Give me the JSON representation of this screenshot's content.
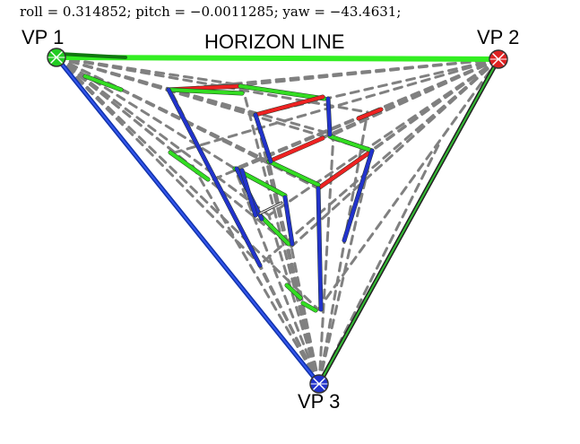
{
  "header": {
    "roll_label": "roll",
    "roll_value": "0.314852",
    "pitch_label": "pitch",
    "pitch_value": "−0.0011285",
    "yaw_label": "yaw",
    "yaw_value": "−43.4631",
    "text": "roll = 0.314852; pitch = −0.0011285; yaw = −43.4631;"
  },
  "horizon_label": "HORIZON LINE",
  "vanishing_points": [
    {
      "id": "vp1",
      "label": "VP 1",
      "color": "#22cc22"
    },
    {
      "id": "vp2",
      "label": "VP 2",
      "color": "#dd2222"
    },
    {
      "id": "vp3",
      "label": "VP 3",
      "color": "#2233cc"
    }
  ],
  "colors": {
    "horizon": "#33ee22",
    "axis_x": "#ee2222",
    "axis_y": "#33dd22",
    "axis_z": "#2233cc",
    "guide": "#808080"
  }
}
